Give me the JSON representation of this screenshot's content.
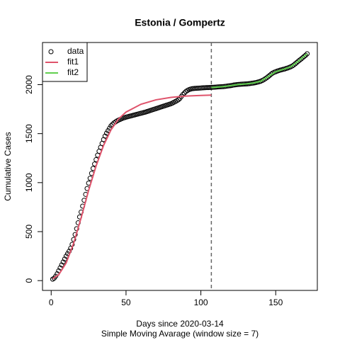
{
  "chart_data": {
    "type": "line",
    "title": "Estonia / Gompertz",
    "xlabel": "Days since 2020-03-14",
    "subtitle": "Simple Moving Avarage (window size = 7)",
    "ylabel": "Cumulative Cases",
    "xlim": [
      -5.8,
      177.8
    ],
    "ylim": [
      -100,
      2430
    ],
    "xticks": [
      0,
      50,
      100,
      150
    ],
    "yticks": [
      0,
      500,
      1000,
      1500,
      2000
    ],
    "vline": 107,
    "legend": "top-left",
    "series": [
      {
        "name": "data",
        "style": "points",
        "color": "#000000",
        "x": [
          1,
          2,
          3,
          4,
          5,
          6,
          7,
          8,
          9,
          10,
          11,
          12,
          13,
          14,
          15,
          16,
          17,
          18,
          19,
          20,
          21,
          22,
          23,
          24,
          25,
          26,
          27,
          28,
          29,
          30,
          31,
          32,
          33,
          34,
          35,
          36,
          37,
          38,
          39,
          40,
          41,
          42,
          43,
          44,
          45,
          46,
          47,
          48,
          49,
          50,
          51,
          52,
          53,
          54,
          55,
          56,
          57,
          58,
          59,
          60,
          61,
          62,
          63,
          64,
          65,
          66,
          67,
          68,
          69,
          70,
          71,
          72,
          73,
          74,
          75,
          76,
          77,
          78,
          79,
          80,
          81,
          82,
          83,
          84,
          85,
          86,
          87,
          88,
          89,
          90,
          91,
          92,
          93,
          94,
          95,
          96,
          97,
          98,
          99,
          100,
          101,
          102,
          103,
          104,
          105,
          106,
          107,
          108,
          109,
          110,
          111,
          112,
          113,
          114,
          115,
          116,
          117,
          118,
          119,
          120,
          121,
          122,
          123,
          124,
          125,
          126,
          127,
          128,
          129,
          130,
          131,
          132,
          133,
          134,
          135,
          136,
          137,
          138,
          139,
          140,
          141,
          142,
          143,
          144,
          145,
          146,
          147,
          148,
          149,
          150,
          151,
          152,
          153,
          154,
          155,
          156,
          157,
          158,
          159,
          160,
          161,
          162,
          163,
          164,
          165,
          166,
          167,
          168,
          169,
          170,
          171
        ],
        "values": [
          15,
          25,
          45,
          70,
          100,
          130,
          160,
          190,
          220,
          250,
          275,
          300,
          330,
          370,
          420,
          470,
          530,
          590,
          650,
          700,
          760,
          820,
          880,
          940,
          995,
          1045,
          1095,
          1145,
          1190,
          1235,
          1280,
          1320,
          1360,
          1400,
          1440,
          1475,
          1505,
          1530,
          1555,
          1580,
          1595,
          1610,
          1620,
          1630,
          1638,
          1645,
          1652,
          1658,
          1663,
          1668,
          1672,
          1676,
          1680,
          1684,
          1688,
          1692,
          1696,
          1700,
          1704,
          1708,
          1712,
          1716,
          1720,
          1725,
          1730,
          1735,
          1740,
          1745,
          1750,
          1755,
          1760,
          1765,
          1770,
          1775,
          1780,
          1785,
          1790,
          1795,
          1800,
          1805,
          1812,
          1820,
          1828,
          1836,
          1846,
          1860,
          1880,
          1900,
          1915,
          1930,
          1940,
          1948,
          1954,
          1958,
          1960,
          1962,
          1963,
          1964,
          1965,
          1966,
          1967,
          1968,
          1969,
          1970,
          1970,
          1971,
          1972,
          1973,
          1974,
          1975,
          1976,
          1977,
          1978,
          1979,
          1980,
          1982,
          1984,
          1986,
          1988,
          1990,
          1993,
          1996,
          1998,
          2000,
          2002,
          2003,
          2004,
          2005,
          2006,
          2007,
          2008,
          2010,
          2012,
          2014,
          2016,
          2019,
          2022,
          2026,
          2030,
          2035,
          2042,
          2050,
          2060,
          2070,
          2082,
          2095,
          2108,
          2118,
          2126,
          2132,
          2138,
          2143,
          2148,
          2152,
          2156,
          2160,
          2165,
          2170,
          2176,
          2182,
          2190,
          2200,
          2212,
          2225,
          2238,
          2250,
          2262,
          2275,
          2288,
          2300,
          2315
        ]
      },
      {
        "name": "fit1",
        "style": "line",
        "color": "#DF536B",
        "x": [
          1,
          5,
          10,
          15,
          20,
          25,
          30,
          35,
          40,
          45,
          50,
          60,
          70,
          80,
          90,
          100,
          107
        ],
        "values": [
          20,
          60,
          180,
          380,
          640,
          920,
          1170,
          1380,
          1540,
          1650,
          1720,
          1800,
          1845,
          1870,
          1883,
          1890,
          1893
        ]
      },
      {
        "name": "fit2",
        "style": "line",
        "color": "#61D04F",
        "x": [
          107,
          115,
          120,
          125,
          130,
          135,
          140,
          145,
          150,
          155,
          160,
          165,
          171
        ],
        "values": [
          1970,
          1980,
          1990,
          2002,
          2007,
          2016,
          2035,
          2082,
          2132,
          2156,
          2182,
          2238,
          2315
        ]
      }
    ]
  }
}
